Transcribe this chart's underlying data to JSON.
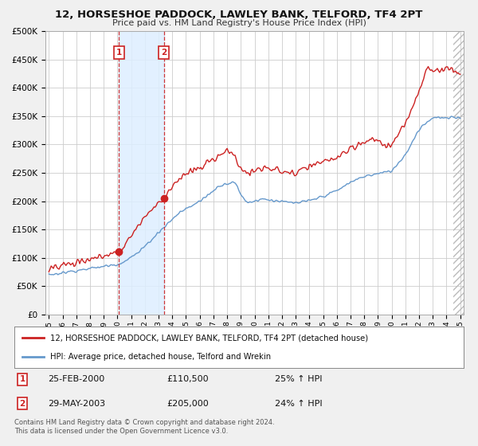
{
  "title": "12, HORSESHOE PADDOCK, LAWLEY BANK, TELFORD, TF4 2PT",
  "subtitle": "Price paid vs. HM Land Registry's House Price Index (HPI)",
  "sale1_date": "25-FEB-2000",
  "sale1_price": 110500,
  "sale1_hpi": "25% ↑ HPI",
  "sale2_date": "29-MAY-2003",
  "sale2_price": 205000,
  "sale2_hpi": "24% ↑ HPI",
  "legend_line1": "12, HORSESHOE PADDOCK, LAWLEY BANK, TELFORD, TF4 2PT (detached house)",
  "legend_line2": "HPI: Average price, detached house, Telford and Wrekin",
  "footer1": "Contains HM Land Registry data © Crown copyright and database right 2024.",
  "footer2": "This data is licensed under the Open Government Licence v3.0.",
  "hpi_color": "#6699cc",
  "price_color": "#cc2222",
  "background_color": "#f0f0f0",
  "plot_bg_color": "#ffffff",
  "grid_color": "#cccccc",
  "shade_color": "#ddeeff",
  "ylim": [
    0,
    500000
  ],
  "xlim_start": 1994.75,
  "xlim_end": 2025.25,
  "yticks": [
    0,
    50000,
    100000,
    150000,
    200000,
    250000,
    300000,
    350000,
    400000,
    450000,
    500000
  ],
  "ytick_labels": [
    "£0",
    "£50K",
    "£100K",
    "£150K",
    "£200K",
    "£250K",
    "£300K",
    "£350K",
    "£400K",
    "£450K",
    "£500K"
  ],
  "sale1_x": 2000.12,
  "sale2_x": 2003.38
}
